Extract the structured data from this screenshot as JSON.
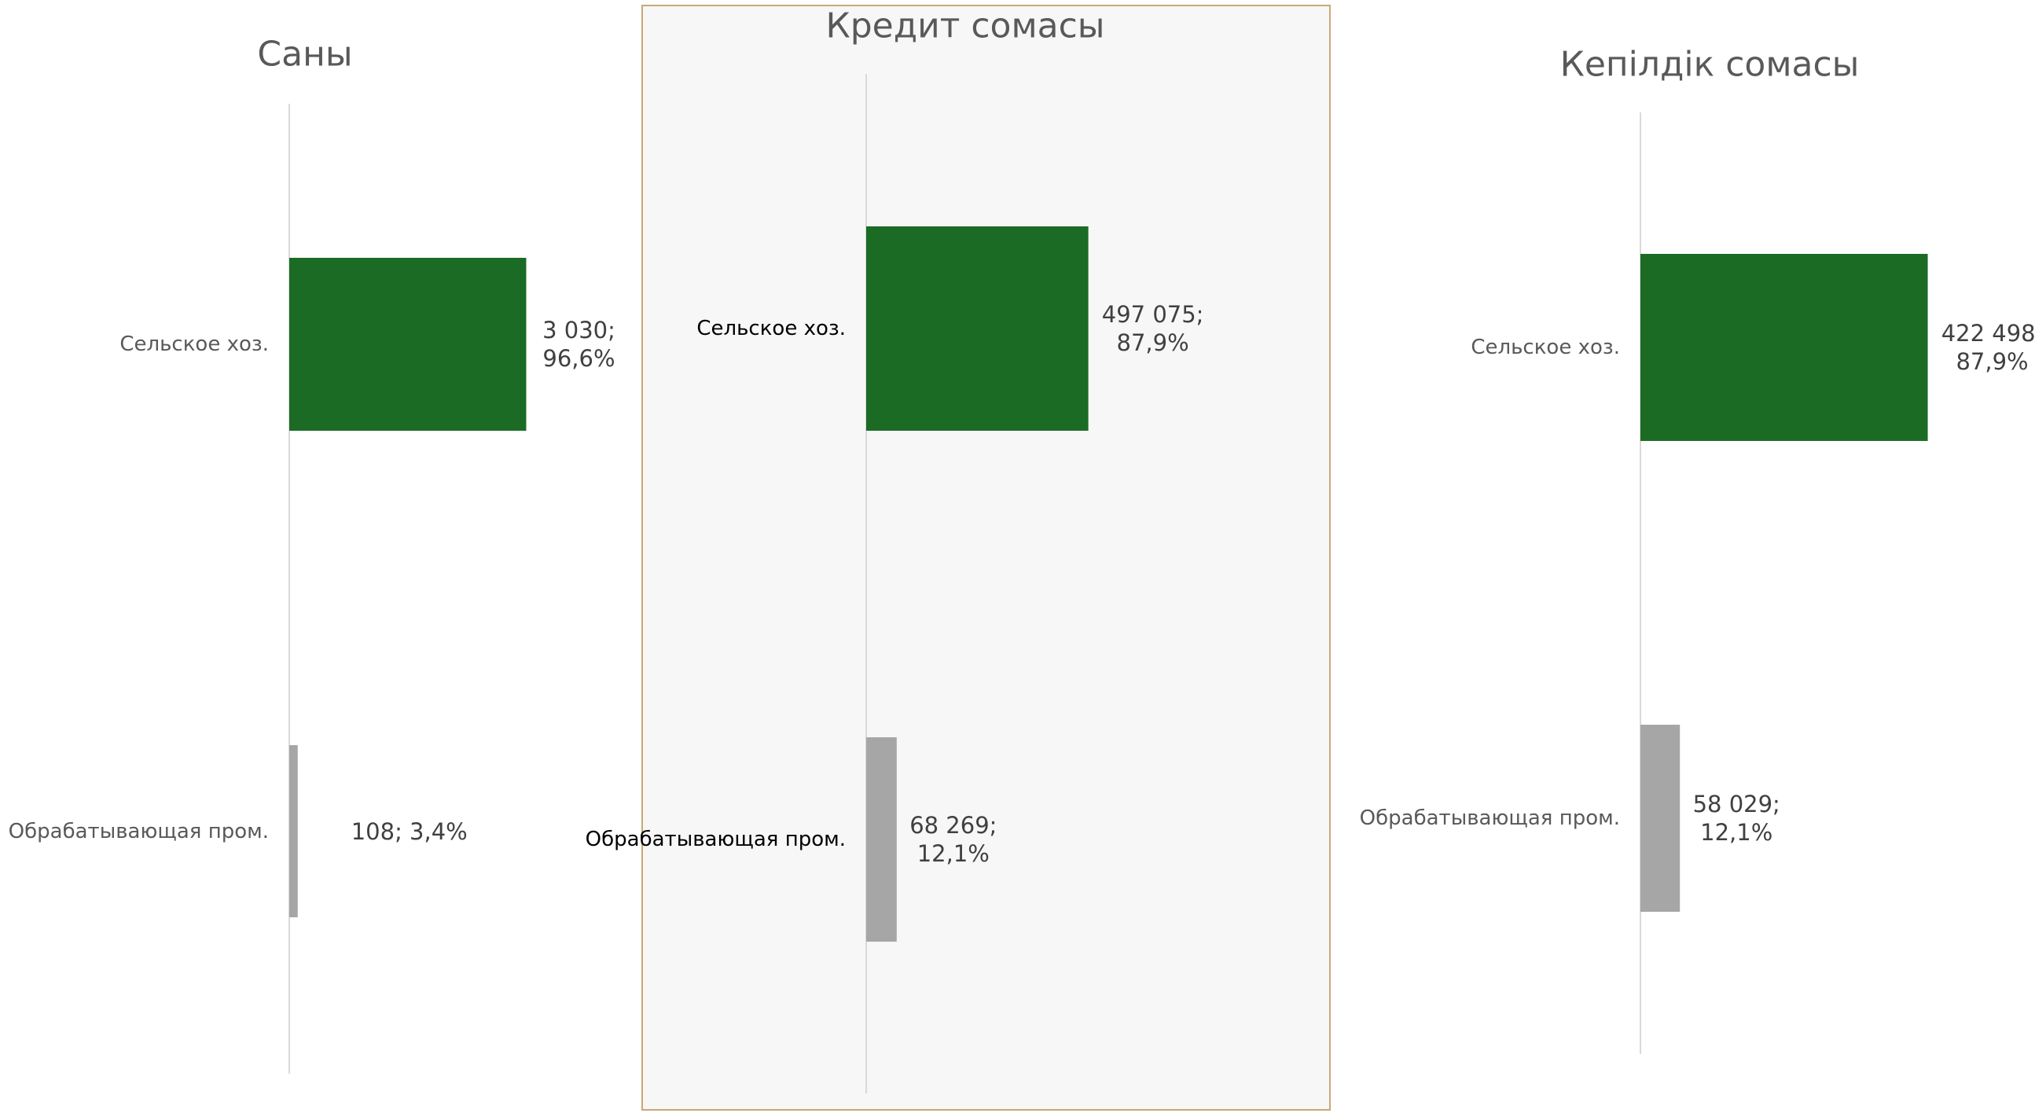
{
  "chart_data": [
    {
      "type": "bar",
      "orientation": "horizontal",
      "title": "Саны",
      "categories": [
        "Сельское хоз.",
        "Обрабатывающая пром."
      ],
      "values": [
        3030,
        108
      ],
      "value_labels": [
        "3 030; 96,6%",
        "108; 3,4%"
      ],
      "colors": [
        "#1b6b25",
        "#a6a6a6"
      ],
      "xlim": [
        0,
        4000
      ]
    },
    {
      "type": "bar",
      "orientation": "horizontal",
      "title": "Кредит сомасы",
      "categories": [
        "Сельское хоз.",
        "Обрабатывающая пром."
      ],
      "values": [
        497075,
        68269
      ],
      "value_labels": [
        "497 075; 87,9%",
        "68 269; 12,1%"
      ],
      "colors": [
        "#1b6b25",
        "#a6a6a6"
      ],
      "xlim": [
        0,
        700000
      ]
    },
    {
      "type": "bar",
      "orientation": "horizontal",
      "title": "Кепілдік сомасы",
      "categories": [
        "Сельское хоз.",
        "Обрабатывающая пром."
      ],
      "values": [
        422498,
        58029
      ],
      "value_labels": [
        "422 498; 87,9%",
        "58 029; 12,1%"
      ],
      "colors": [
        "#1b6b25",
        "#a6a6a6"
      ],
      "xlim": [
        0,
        460000
      ]
    }
  ]
}
